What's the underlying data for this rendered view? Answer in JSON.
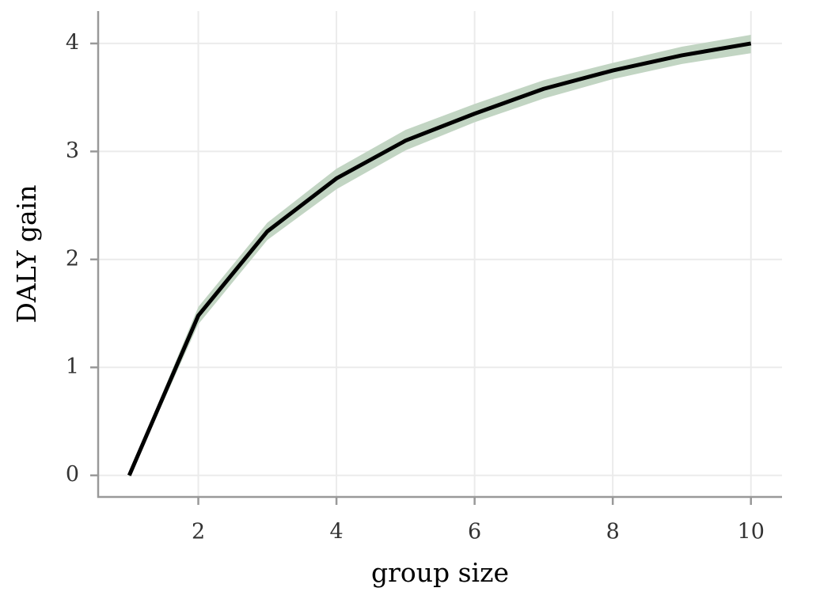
{
  "chart_data": {
    "type": "line",
    "xlabel": "group size",
    "ylabel": "DALY gain",
    "x": [
      1,
      2,
      3,
      4,
      5,
      6,
      7,
      8,
      9,
      10
    ],
    "series": [
      {
        "color": "#000000",
        "values": [
          0,
          1.48,
          2.26,
          2.75,
          3.1,
          3.35,
          3.58,
          3.75,
          3.89,
          4.0
        ],
        "band_lower": [
          -0.02,
          1.4,
          2.18,
          2.65,
          3.01,
          3.27,
          3.49,
          3.67,
          3.81,
          3.91
        ],
        "band_upper": [
          0.02,
          1.56,
          2.34,
          2.84,
          3.2,
          3.44,
          3.66,
          3.82,
          3.97,
          4.08
        ],
        "band_color": "#c2d5c3"
      }
    ],
    "xlim": [
      0.55,
      10.45
    ],
    "ylim": [
      -0.2,
      4.3
    ],
    "xticks": [
      2,
      4,
      6,
      8,
      10
    ],
    "yticks": [
      0,
      1,
      2,
      3,
      4
    ],
    "grid": true
  }
}
